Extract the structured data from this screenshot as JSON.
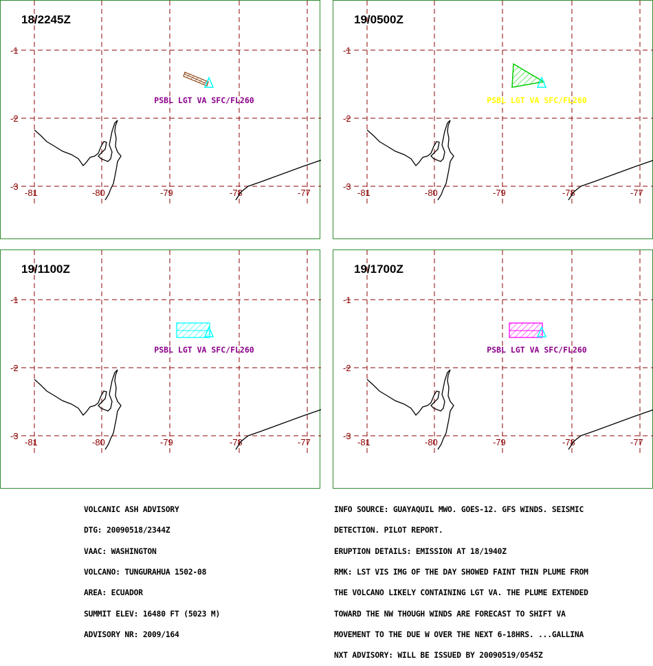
{
  "colors": {
    "frame": "#2e8b2e",
    "grid": "#8b0000",
    "coast": "#000000",
    "annotation_purple": "#8b008b",
    "annotation_yellow": "#ffff00",
    "volcano": "#00ffff",
    "obs_plume": "#8b4513",
    "fcst_6hr": "#00cc00",
    "fcst_12hr": "#00ffff",
    "fcst_18hr": "#ff00ff"
  },
  "grid_labels": {
    "lat": [
      "-1",
      "-2",
      "-3"
    ],
    "lon": [
      "-81",
      "-80",
      "-79",
      "-78",
      "-77"
    ]
  },
  "panels": [
    {
      "time": "18/2245Z",
      "label": "PSBL LGT VA SFC/FL260",
      "label_color": "#8b008b",
      "plume": "obs",
      "plume_color": "#8b4513"
    },
    {
      "time": "19/0500Z",
      "label": "PSBL  LGT  VA  SFC/FL260",
      "label_color": "#ffff00",
      "plume": "tri",
      "plume_color": "#00cc00"
    },
    {
      "time": "19/1100Z",
      "label": "PSBL LGT VA SFC/FL260",
      "label_color": "#8b008b",
      "plume": "rect",
      "plume_color": "#00ffff"
    },
    {
      "time": "19/1700Z",
      "label": "PSBL LGT VA SFC/FL260",
      "label_color": "#8b008b",
      "plume": "rect",
      "plume_color": "#ff00ff"
    }
  ],
  "advisory_left": [
    "VOLCANIC ASH ADVISORY",
    "DTG: 20090518/2344Z",
    "VAAC: WASHINGTON",
    "VOLCANO: TUNGURAHUA 1502-08",
    "AREA: ECUADOR",
    "SUMMIT ELEV: 16480 FT (5023 M)",
    "ADVISORY NR: 2009/164"
  ],
  "advisory_right": [
    "INFO SOURCE: GUAYAQUIL MWO. GOES-12. GFS WINDS. SEISMIC",
    "DETECTION. PILOT REPORT.",
    "ERUPTION DETAILS: EMISSION AT 18/1940Z",
    "RMK: LST VIS IMG OF THE DAY SHOWED FAINT THIN PLUME FROM",
    "THE VOLCANO LIKELY CONTAINING LGT VA. THE PLUME EXTENDED",
    "TOWARD THE NW THOUGH WINDS ARE FORECAST TO SHIFT VA",
    "MOVEMENT TO THE DUE W OVER THE NEXT 6-18HRS. ...GALLINA",
    "NXT ADVISORY: WILL BE ISSUED BY 20090519/0545Z"
  ]
}
